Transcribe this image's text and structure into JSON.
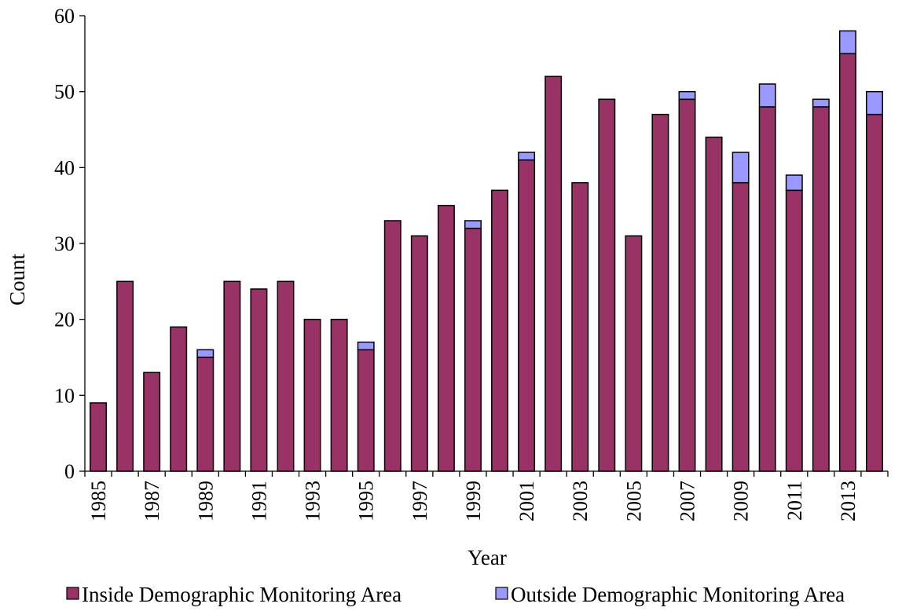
{
  "chart_data": {
    "type": "bar",
    "stacked": true,
    "title": "",
    "xlabel": "Year",
    "ylabel": "Count",
    "ylim": [
      0,
      60
    ],
    "yticks": [
      0,
      10,
      20,
      30,
      40,
      50,
      60
    ],
    "grid": false,
    "legend_position": "bottom",
    "categories": [
      "1985",
      "1986",
      "1987",
      "1988",
      "1989",
      "1990",
      "1991",
      "1992",
      "1993",
      "1994",
      "1995",
      "1996",
      "1997",
      "1998",
      "1999",
      "2000",
      "2001",
      "2002",
      "2003",
      "2004",
      "2005",
      "2006",
      "2007",
      "2008",
      "2009",
      "2010",
      "2011",
      "2012",
      "2013",
      "2014"
    ],
    "xtick_labels": [
      "1985",
      "1987",
      "1989",
      "1991",
      "1993",
      "1995",
      "1997",
      "1999",
      "2001",
      "2003",
      "2005",
      "2007",
      "2009",
      "2011",
      "2013"
    ],
    "series": [
      {
        "name": "Inside Demographic Monitoring Area",
        "color": "#993366",
        "values": [
          9,
          25,
          13,
          19,
          15,
          25,
          24,
          25,
          20,
          20,
          16,
          33,
          31,
          35,
          32,
          37,
          41,
          52,
          38,
          49,
          31,
          47,
          49,
          44,
          38,
          48,
          37,
          48,
          55,
          47
        ]
      },
      {
        "name": "Outside Demographic Monitoring Area",
        "color": "#9999ff",
        "values": [
          0,
          0,
          0,
          0,
          1,
          0,
          0,
          0,
          0,
          0,
          1,
          0,
          0,
          0,
          1,
          0,
          1,
          0,
          0,
          0,
          0,
          0,
          1,
          0,
          4,
          3,
          2,
          1,
          3,
          3
        ]
      }
    ]
  }
}
